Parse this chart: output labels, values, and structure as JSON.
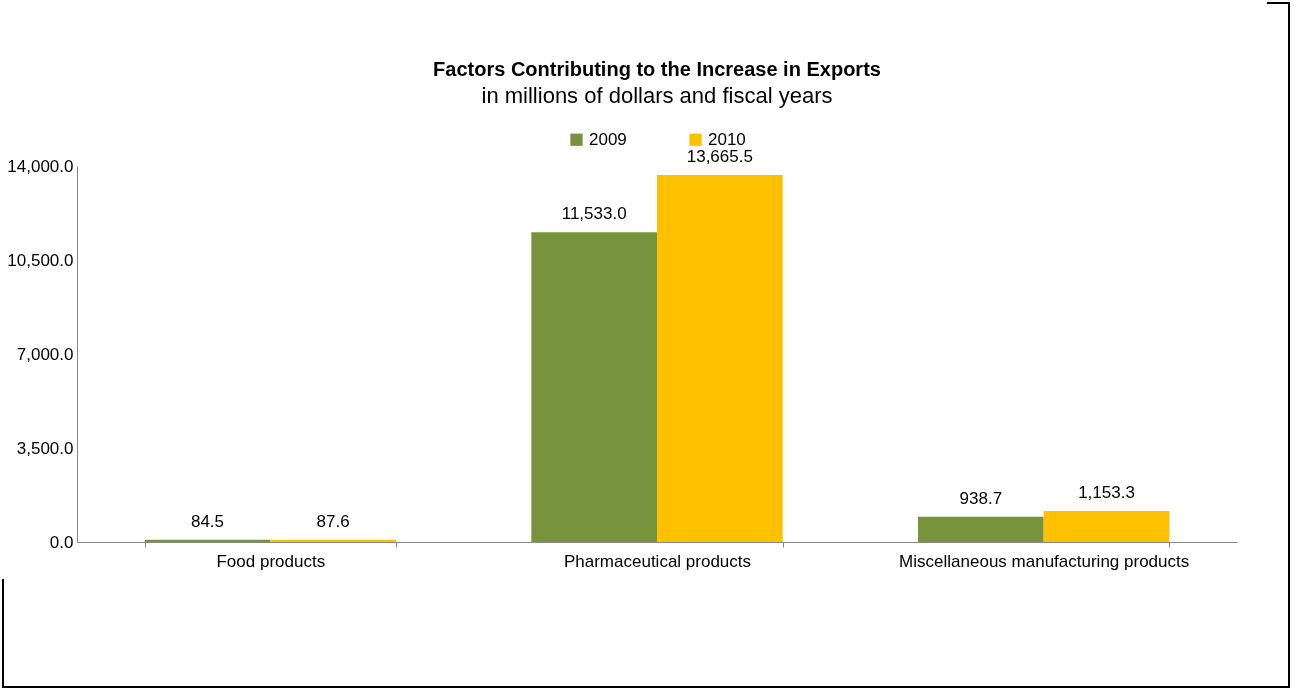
{
  "chart_data": {
    "type": "bar",
    "title": "Factors Contributing to the Increase in Exports",
    "subtitle": "in millions of dollars and fiscal years",
    "categories": [
      "Food products",
      "Pharmaceutical products",
      "Miscellaneous manufacturing products"
    ],
    "series": [
      {
        "name": "2009",
        "color": "#77933c",
        "values": [
          84.5,
          11533.0,
          938.7
        ],
        "value_labels": [
          "84.5",
          "11,533.0",
          "938.7"
        ]
      },
      {
        "name": "2010",
        "color": "#ffc000",
        "values": [
          87.6,
          13665.5,
          1153.3
        ],
        "value_labels": [
          "87.6",
          "13,665.5",
          "1,153.3"
        ]
      }
    ],
    "ylim": [
      0,
      14000
    ],
    "yticks": [
      {
        "value": 0,
        "label": "0.0"
      },
      {
        "value": 3500,
        "label": "3,500.0"
      },
      {
        "value": 7000,
        "label": "7,000.0"
      },
      {
        "value": 10500,
        "label": "10,500.0"
      },
      {
        "value": 14000,
        "label": "14,000.0"
      }
    ],
    "grid": false,
    "legend": "top"
  }
}
